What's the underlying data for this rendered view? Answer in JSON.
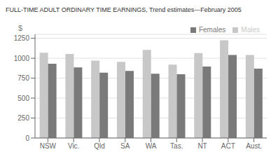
{
  "chart_data": {
    "type": "bar",
    "title": "FULL-TIME ADULT ORDINARY TIME EARNINGS, Trend estimates—February 2005",
    "ylabel": "$",
    "categories": [
      "NSW",
      "Vic.",
      "Qld",
      "SA",
      "WA",
      "Tas.",
      "NT",
      "ACT",
      "Aust."
    ],
    "series": [
      {
        "name": "Males",
        "color": "#c8c8c8",
        "values": [
          1070,
          1055,
          970,
          955,
          1105,
          920,
          1065,
          1225,
          1040
        ]
      },
      {
        "name": "Females",
        "color": "#7a7a7a",
        "values": [
          930,
          885,
          820,
          840,
          805,
          800,
          895,
          1040,
          870
        ]
      }
    ],
    "ylim": [
      0,
      1300
    ],
    "yticks": [
      0,
      250,
      500,
      750,
      1000,
      1250
    ],
    "grid": true,
    "legend": "upper right"
  }
}
